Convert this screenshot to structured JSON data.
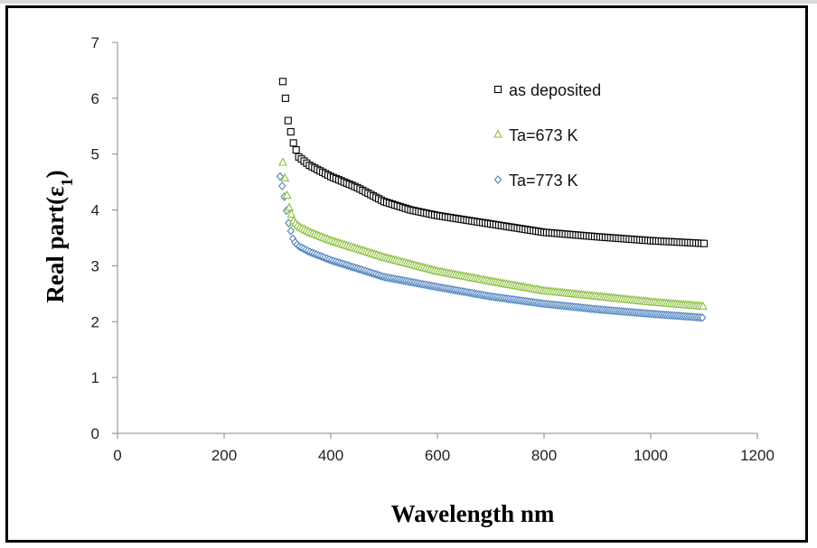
{
  "chart_data": {
    "type": "scatter",
    "title": "",
    "xlabel": "Wavelength nm",
    "ylabel_main": "Real part(ε",
    "ylabel_sub": "1",
    "ylabel_close": ")",
    "xlim": [
      0,
      1200
    ],
    "ylim": [
      0,
      7
    ],
    "xticks": [
      0,
      200,
      400,
      600,
      800,
      1000,
      1200
    ],
    "yticks": [
      0,
      1,
      2,
      3,
      4,
      5,
      6,
      7
    ],
    "grid": false,
    "legend_position": "top-right",
    "series": [
      {
        "name": "as deposited",
        "marker": "square",
        "color": "#000000",
        "x_start": 310,
        "x_end": 1100,
        "x_step": 5,
        "curve": [
          [
            310,
            6.3
          ],
          [
            315,
            6.0
          ],
          [
            320,
            5.6
          ],
          [
            330,
            5.2
          ],
          [
            340,
            4.95
          ],
          [
            360,
            4.8
          ],
          [
            400,
            4.6
          ],
          [
            450,
            4.4
          ],
          [
            500,
            4.15
          ],
          [
            550,
            4.0
          ],
          [
            600,
            3.9
          ],
          [
            700,
            3.75
          ],
          [
            800,
            3.6
          ],
          [
            900,
            3.52
          ],
          [
            1000,
            3.45
          ],
          [
            1100,
            3.4
          ]
        ]
      },
      {
        "name": "Ta=673 K",
        "marker": "triangle",
        "color": "#8cbf3f",
        "x_start": 310,
        "x_end": 1100,
        "x_step": 4,
        "curve": [
          [
            310,
            4.85
          ],
          [
            315,
            4.5
          ],
          [
            320,
            4.1
          ],
          [
            330,
            3.8
          ],
          [
            340,
            3.7
          ],
          [
            360,
            3.6
          ],
          [
            400,
            3.45
          ],
          [
            500,
            3.15
          ],
          [
            600,
            2.9
          ],
          [
            700,
            2.72
          ],
          [
            800,
            2.55
          ],
          [
            900,
            2.45
          ],
          [
            1000,
            2.35
          ],
          [
            1100,
            2.27
          ]
        ]
      },
      {
        "name": "Ta=773 K",
        "marker": "diamond",
        "color": "#4f81bd",
        "x_start": 305,
        "x_end": 1100,
        "x_step": 4,
        "curve": [
          [
            305,
            4.6
          ],
          [
            312,
            4.3
          ],
          [
            320,
            3.8
          ],
          [
            330,
            3.45
          ],
          [
            340,
            3.35
          ],
          [
            360,
            3.25
          ],
          [
            400,
            3.1
          ],
          [
            500,
            2.8
          ],
          [
            600,
            2.62
          ],
          [
            700,
            2.45
          ],
          [
            800,
            2.32
          ],
          [
            900,
            2.22
          ],
          [
            1000,
            2.14
          ],
          [
            1100,
            2.07
          ]
        ]
      }
    ]
  }
}
